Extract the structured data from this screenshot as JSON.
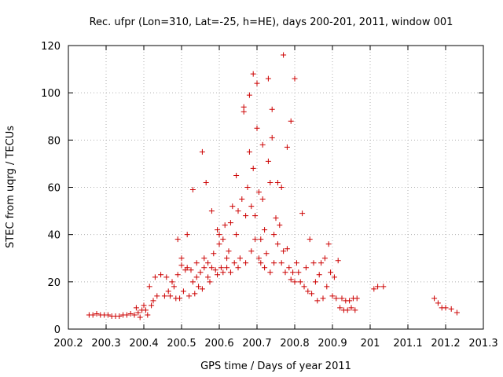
{
  "chart_data": {
    "type": "scatter",
    "title": "Rec. ufpr (Lon=310, Lat=-25, h=HE), days 200-201, 2011, window 001",
    "xlabel": "GPS time / Days of year 2011",
    "ylabel": "STEC from uqrg / TECUs",
    "xlim": [
      200.2,
      201.3
    ],
    "ylim": [
      0,
      120
    ],
    "xticks": [
      "200.2",
      "200.3",
      "200.4",
      "200.5",
      "200.6",
      "200.7",
      "200.8",
      "200.9",
      "201",
      "201.1",
      "201.2",
      "201.3"
    ],
    "yticks": [
      "0",
      "20",
      "40",
      "60",
      "80",
      "100",
      "120"
    ],
    "grid": true,
    "marker": "+",
    "color": "#cc0000",
    "series": [
      {
        "name": "STEC",
        "points": [
          [
            200.255,
            6
          ],
          [
            200.265,
            6
          ],
          [
            200.275,
            6.5
          ],
          [
            200.285,
            6
          ],
          [
            200.295,
            6
          ],
          [
            200.305,
            6
          ],
          [
            200.315,
            5.5
          ],
          [
            200.325,
            5.5
          ],
          [
            200.335,
            5.5
          ],
          [
            200.345,
            6
          ],
          [
            200.355,
            6
          ],
          [
            200.365,
            6.5
          ],
          [
            200.375,
            6
          ],
          [
            200.38,
            9
          ],
          [
            200.385,
            7
          ],
          [
            200.39,
            5
          ],
          [
            200.395,
            8
          ],
          [
            200.4,
            10
          ],
          [
            200.405,
            8
          ],
          [
            200.41,
            6
          ],
          [
            200.415,
            18
          ],
          [
            200.42,
            10
          ],
          [
            200.425,
            12
          ],
          [
            200.43,
            22
          ],
          [
            200.435,
            14
          ],
          [
            200.445,
            23
          ],
          [
            200.455,
            14
          ],
          [
            200.46,
            22
          ],
          [
            200.465,
            16
          ],
          [
            200.47,
            14
          ],
          [
            200.475,
            20
          ],
          [
            200.48,
            18
          ],
          [
            200.485,
            13
          ],
          [
            200.49,
            23
          ],
          [
            200.49,
            38
          ],
          [
            200.495,
            13
          ],
          [
            200.5,
            30
          ],
          [
            200.5,
            27
          ],
          [
            200.505,
            16
          ],
          [
            200.51,
            25
          ],
          [
            200.515,
            40
          ],
          [
            200.515,
            26
          ],
          [
            200.52,
            14
          ],
          [
            200.525,
            25
          ],
          [
            200.53,
            59
          ],
          [
            200.53,
            20
          ],
          [
            200.535,
            15
          ],
          [
            200.54,
            28
          ],
          [
            200.54,
            22
          ],
          [
            200.545,
            18
          ],
          [
            200.55,
            24
          ],
          [
            200.555,
            75
          ],
          [
            200.555,
            17
          ],
          [
            200.56,
            30
          ],
          [
            200.56,
            26
          ],
          [
            200.565,
            62
          ],
          [
            200.57,
            28
          ],
          [
            200.57,
            22
          ],
          [
            200.575,
            20
          ],
          [
            200.58,
            50
          ],
          [
            200.58,
            26
          ],
          [
            200.585,
            32
          ],
          [
            200.59,
            25
          ],
          [
            200.595,
            42
          ],
          [
            200.595,
            23
          ],
          [
            200.6,
            40
          ],
          [
            200.6,
            36
          ],
          [
            200.605,
            26
          ],
          [
            200.61,
            38
          ],
          [
            200.61,
            24
          ],
          [
            200.615,
            44
          ],
          [
            200.62,
            30
          ],
          [
            200.62,
            26
          ],
          [
            200.625,
            33
          ],
          [
            200.63,
            45
          ],
          [
            200.63,
            24
          ],
          [
            200.635,
            52
          ],
          [
            200.64,
            28
          ],
          [
            200.645,
            65
          ],
          [
            200.645,
            40
          ],
          [
            200.65,
            50
          ],
          [
            200.65,
            26
          ],
          [
            200.655,
            30
          ],
          [
            200.66,
            55
          ],
          [
            200.665,
            94
          ],
          [
            200.665,
            92
          ],
          [
            200.67,
            48
          ],
          [
            200.67,
            28
          ],
          [
            200.675,
            60
          ],
          [
            200.68,
            99
          ],
          [
            200.68,
            75
          ],
          [
            200.685,
            52
          ],
          [
            200.685,
            33
          ],
          [
            200.69,
            108
          ],
          [
            200.69,
            68
          ],
          [
            200.695,
            48
          ],
          [
            200.695,
            38
          ],
          [
            200.7,
            104
          ],
          [
            200.7,
            85
          ],
          [
            200.705,
            58
          ],
          [
            200.705,
            30
          ],
          [
            200.71,
            38
          ],
          [
            200.71,
            28
          ],
          [
            200.715,
            78
          ],
          [
            200.715,
            55
          ],
          [
            200.72,
            42
          ],
          [
            200.72,
            26
          ],
          [
            200.725,
            32
          ],
          [
            200.73,
            106
          ],
          [
            200.73,
            71
          ],
          [
            200.735,
            62
          ],
          [
            200.735,
            24
          ],
          [
            200.74,
            93
          ],
          [
            200.74,
            81
          ],
          [
            200.745,
            40
          ],
          [
            200.745,
            28
          ],
          [
            200.75,
            47
          ],
          [
            200.755,
            62
          ],
          [
            200.755,
            36
          ],
          [
            200.76,
            44
          ],
          [
            200.765,
            60
          ],
          [
            200.765,
            28
          ],
          [
            200.77,
            116
          ],
          [
            200.77,
            33
          ],
          [
            200.775,
            24
          ],
          [
            200.78,
            77
          ],
          [
            200.78,
            34
          ],
          [
            200.785,
            26
          ],
          [
            200.79,
            88
          ],
          [
            200.79,
            21
          ],
          [
            200.795,
            24
          ],
          [
            200.8,
            106
          ],
          [
            200.8,
            20
          ],
          [
            200.805,
            28
          ],
          [
            200.81,
            24
          ],
          [
            200.815,
            20
          ],
          [
            200.82,
            49
          ],
          [
            200.825,
            18
          ],
          [
            200.83,
            26
          ],
          [
            200.835,
            16
          ],
          [
            200.84,
            38
          ],
          [
            200.845,
            15
          ],
          [
            200.85,
            28
          ],
          [
            200.855,
            20
          ],
          [
            200.86,
            12
          ],
          [
            200.865,
            23
          ],
          [
            200.87,
            28
          ],
          [
            200.875,
            13
          ],
          [
            200.88,
            30
          ],
          [
            200.885,
            18
          ],
          [
            200.89,
            36
          ],
          [
            200.895,
            24
          ],
          [
            200.9,
            14
          ],
          [
            200.905,
            22
          ],
          [
            200.91,
            13
          ],
          [
            200.915,
            29
          ],
          [
            200.92,
            9
          ],
          [
            200.925,
            13
          ],
          [
            200.93,
            8
          ],
          [
            200.935,
            12
          ],
          [
            200.94,
            8
          ],
          [
            200.945,
            12
          ],
          [
            200.95,
            9
          ],
          [
            200.955,
            13
          ],
          [
            200.96,
            8
          ],
          [
            200.965,
            13
          ],
          [
            201.01,
            17
          ],
          [
            201.02,
            18
          ],
          [
            201.035,
            18
          ],
          [
            201.17,
            13
          ],
          [
            201.18,
            11
          ],
          [
            201.19,
            9
          ],
          [
            201.2,
            9
          ],
          [
            201.215,
            8.5
          ],
          [
            201.23,
            7
          ]
        ]
      }
    ]
  }
}
